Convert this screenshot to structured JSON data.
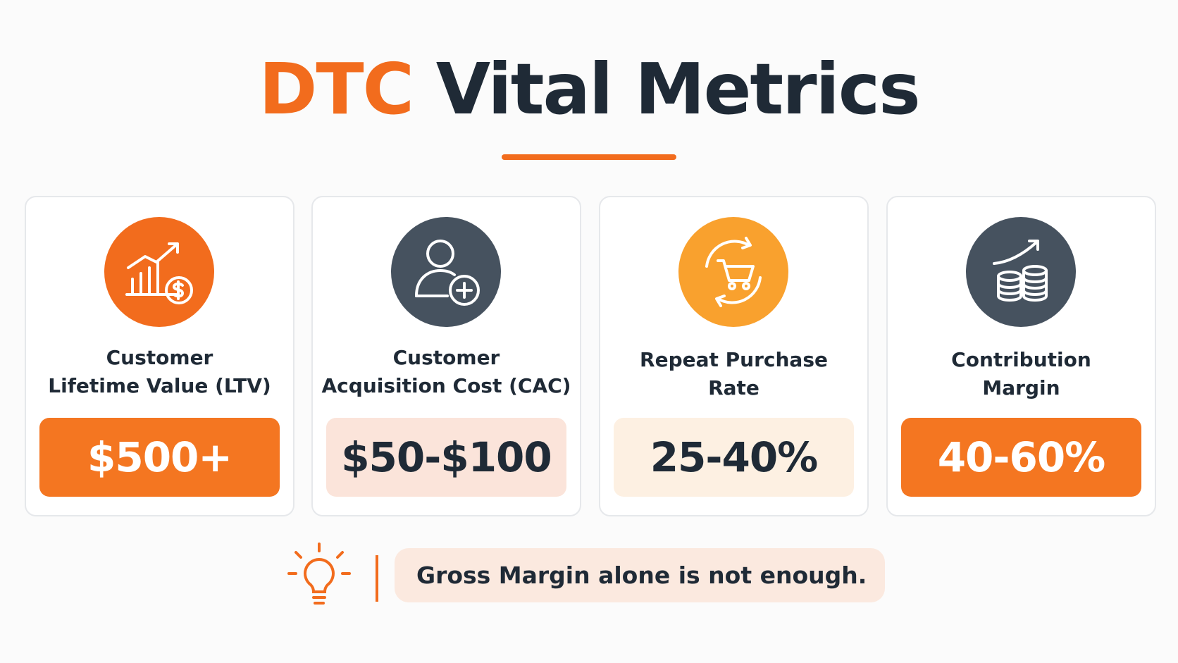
{
  "header": {
    "title_accent": "DTC",
    "title_main": "Vital Metrics"
  },
  "cards": [
    {
      "label_lines": [
        "Customer",
        "Lifetime Value (LTV)"
      ],
      "value": "$500+"
    },
    {
      "label_lines": [
        "Customer",
        "Acquisition Cost (CAC)"
      ],
      "value": "$50-$100"
    },
    {
      "label_lines": [
        "Repeat Purchase",
        "Rate"
      ],
      "value": "25-40%"
    },
    {
      "label_lines": [
        "Contribution",
        "Margin"
      ],
      "value": "40-60%"
    }
  ],
  "note": {
    "text": "Gross Margin alone is not enough."
  }
}
